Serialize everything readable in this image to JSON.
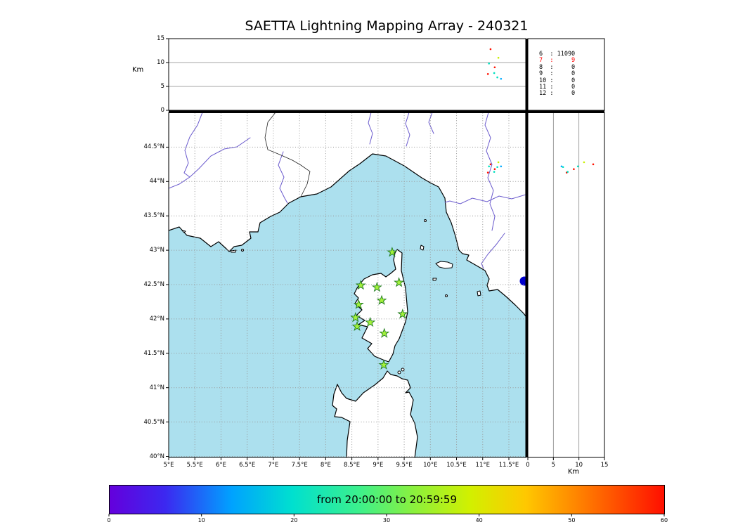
{
  "title": "SAETTA Lightning Mapping Array - 240321",
  "altitude_axis": {
    "label": "Km",
    "top_panel_ticks": [
      "15",
      "10",
      "5",
      "0"
    ],
    "right_panel_ticks": [
      "0",
      "5",
      "10",
      "15"
    ]
  },
  "stats_panel": {
    "rows": [
      {
        "level": "6",
        "value": "11090",
        "highlight": false
      },
      {
        "level": "7",
        "value": "9",
        "highlight": true
      },
      {
        "level": "8",
        "value": "0",
        "highlight": false
      },
      {
        "level": "9",
        "value": "0",
        "highlight": false
      },
      {
        "level": "10",
        "value": "0",
        "highlight": false
      },
      {
        "level": "11",
        "value": "0",
        "highlight": false
      },
      {
        "level": "12",
        "value": "0",
        "highlight": false
      }
    ],
    "highlight_color": "#ff0000"
  },
  "map": {
    "x_ticks": [
      "5°E",
      "5.5°E",
      "6°E",
      "6.5°E",
      "7°E",
      "7.5°E",
      "8°E",
      "8.5°E",
      "9°E",
      "9.5°E",
      "10°E",
      "10.5°E",
      "11°E",
      "11.5°E"
    ],
    "y_ticks": [
      "44.5°N",
      "44°N",
      "43.5°N",
      "43°N",
      "42.5°N",
      "42°N",
      "41.5°N",
      "41°N",
      "40.5°N",
      "40°N"
    ]
  },
  "colorbar": {
    "label": "from 20:00:00 to 20:59:59",
    "ticks": [
      "0",
      "10",
      "20",
      "30",
      "40",
      "50",
      "60"
    ]
  },
  "colors": {
    "ocean": "#ace0ee",
    "land": "#ffffff",
    "river": "#6a5acd",
    "station_fill": "#a4f23c",
    "station_edge": "#1f7a1f",
    "lake": "#0000cd",
    "highlight": "#ff0000"
  },
  "chart_data": {
    "type": "scatter",
    "title": "SAETTA Lightning Mapping Array - 240321",
    "panels": [
      "altitude-vs-longitude",
      "source-count-stats",
      "plan-view-map",
      "altitude-vs-latitude",
      "time-colorbar"
    ],
    "map_extent": {
      "lon_deg_e": [
        5.0,
        11.82
      ],
      "lat_deg_n": [
        40.0,
        45.0
      ]
    },
    "altitude_range_km": [
      0,
      15
    ],
    "time_window": {
      "from": "20:00:00",
      "to": "20:59:59",
      "colorbar_minutes": [
        0,
        60
      ],
      "colorbar_tick_step": 10
    },
    "grid_step_deg": 0.5,
    "source_counts": [
      {
        "level": 6,
        "count": 11090
      },
      {
        "level": 7,
        "count": 9
      },
      {
        "level": 8,
        "count": 0
      },
      {
        "level": 9,
        "count": 0
      },
      {
        "level": 10,
        "count": 0
      },
      {
        "level": 11,
        "count": 0
      },
      {
        "level": 12,
        "count": 0
      }
    ],
    "stations_lonlat": [
      [
        9.27,
        42.97
      ],
      [
        8.67,
        42.49
      ],
      [
        8.98,
        42.46
      ],
      [
        9.4,
        42.53
      ],
      [
        8.63,
        42.21
      ],
      [
        9.07,
        42.27
      ],
      [
        8.57,
        42.02
      ],
      [
        8.6,
        41.89
      ],
      [
        8.85,
        41.95
      ],
      [
        9.47,
        42.07
      ],
      [
        9.12,
        41.79
      ],
      [
        9.11,
        41.33
      ]
    ],
    "points": [
      {
        "lon": 11.15,
        "lat": 44.25,
        "alt_km": 12.8,
        "t_min": 57
      },
      {
        "lon": 11.12,
        "lat": 44.22,
        "alt_km": 9.8,
        "t_min": 28
      },
      {
        "lon": 11.23,
        "lat": 44.18,
        "alt_km": 9.0,
        "t_min": 57
      },
      {
        "lon": 11.3,
        "lat": 44.28,
        "alt_km": 11.0,
        "t_min": 46
      },
      {
        "lon": 11.1,
        "lat": 44.13,
        "alt_km": 7.6,
        "t_min": 58
      },
      {
        "lon": 11.22,
        "lat": 44.14,
        "alt_km": 7.8,
        "t_min": 30
      },
      {
        "lon": 11.35,
        "lat": 44.22,
        "alt_km": 6.6,
        "t_min": 26
      },
      {
        "lon": 11.28,
        "lat": 44.21,
        "alt_km": 6.9,
        "t_min": 29
      }
    ]
  }
}
